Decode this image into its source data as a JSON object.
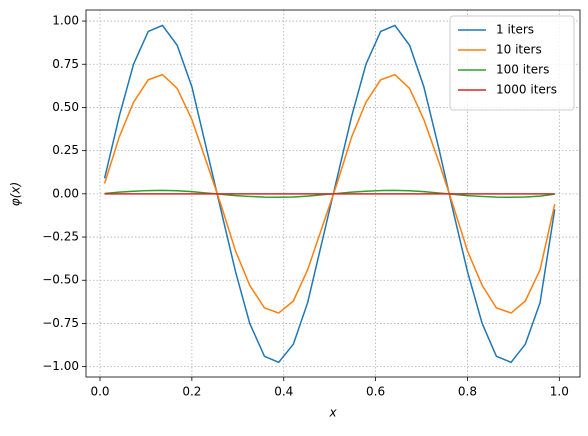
{
  "chart_data": {
    "type": "line",
    "xlabel": "x",
    "ylabel": "φ(x)",
    "x": [
      0.01,
      0.042,
      0.073,
      0.105,
      0.136,
      0.168,
      0.2,
      0.231,
      0.263,
      0.295,
      0.326,
      0.358,
      0.389,
      0.421,
      0.452,
      0.484,
      0.516,
      0.548,
      0.579,
      0.611,
      0.642,
      0.674,
      0.705,
      0.737,
      0.768,
      0.8,
      0.832,
      0.863,
      0.895,
      0.926,
      0.958,
      0.99
    ],
    "series": [
      {
        "name": "1 iters",
        "color": "#1f77b4",
        "values": [
          0.09,
          0.45,
          0.75,
          0.94,
          0.975,
          0.86,
          0.62,
          0.27,
          -0.09,
          -0.45,
          -0.75,
          -0.94,
          -0.975,
          -0.87,
          -0.63,
          -0.27,
          0.09,
          0.45,
          0.75,
          0.94,
          0.975,
          0.86,
          0.62,
          0.27,
          -0.09,
          -0.45,
          -0.75,
          -0.94,
          -0.975,
          -0.87,
          -0.63,
          -0.09
        ]
      },
      {
        "name": "10 iters",
        "color": "#ff7f0e",
        "values": [
          0.06,
          0.33,
          0.53,
          0.66,
          0.69,
          0.61,
          0.43,
          0.19,
          -0.06,
          -0.33,
          -0.53,
          -0.66,
          -0.69,
          -0.62,
          -0.44,
          -0.19,
          0.06,
          0.33,
          0.53,
          0.66,
          0.69,
          0.61,
          0.43,
          0.19,
          -0.06,
          -0.33,
          -0.53,
          -0.66,
          -0.69,
          -0.62,
          -0.44,
          -0.06
        ]
      },
      {
        "name": "100 iters",
        "color": "#2ca02c",
        "values": [
          0.002,
          0.01,
          0.015,
          0.019,
          0.02,
          0.018,
          0.013,
          0.005,
          -0.002,
          -0.01,
          -0.015,
          -0.019,
          -0.02,
          -0.018,
          -0.013,
          -0.005,
          0.002,
          0.01,
          0.015,
          0.019,
          0.02,
          0.018,
          0.013,
          0.005,
          -0.002,
          -0.01,
          -0.015,
          -0.019,
          -0.02,
          -0.018,
          -0.013,
          -0.002
        ]
      },
      {
        "name": "1000 iters",
        "color": "#d62728",
        "values": [
          0,
          0,
          0,
          0,
          0,
          0,
          0,
          0,
          0,
          0,
          0,
          0,
          0,
          0,
          0,
          0,
          0,
          0,
          0,
          0,
          0,
          0,
          0,
          0,
          0,
          0,
          0,
          0,
          0,
          0,
          0,
          0
        ]
      }
    ],
    "xlim": [
      -0.0305,
      1.045
    ],
    "ylim": [
      -1.06,
      1.064
    ],
    "xticks": [
      {
        "value": 0,
        "label": "0.0"
      },
      {
        "value": 0.2,
        "label": "0.2"
      },
      {
        "value": 0.4,
        "label": "0.4"
      },
      {
        "value": 0.6,
        "label": "0.6"
      },
      {
        "value": 0.8,
        "label": "0.8"
      },
      {
        "value": 1,
        "label": "1.0"
      }
    ],
    "yticks": [
      {
        "value": -1,
        "label": "−1.00"
      },
      {
        "value": -0.75,
        "label": "−0.75"
      },
      {
        "value": -0.5,
        "label": "−0.50"
      },
      {
        "value": -0.25,
        "label": "−0.25"
      },
      {
        "value": 0,
        "label": "0.00"
      },
      {
        "value": 0.25,
        "label": "0.25"
      },
      {
        "value": 0.5,
        "label": "0.50"
      },
      {
        "value": 0.75,
        "label": "0.75"
      },
      {
        "value": 1,
        "label": "1.00"
      }
    ],
    "grid": true,
    "legend": "upper right"
  }
}
